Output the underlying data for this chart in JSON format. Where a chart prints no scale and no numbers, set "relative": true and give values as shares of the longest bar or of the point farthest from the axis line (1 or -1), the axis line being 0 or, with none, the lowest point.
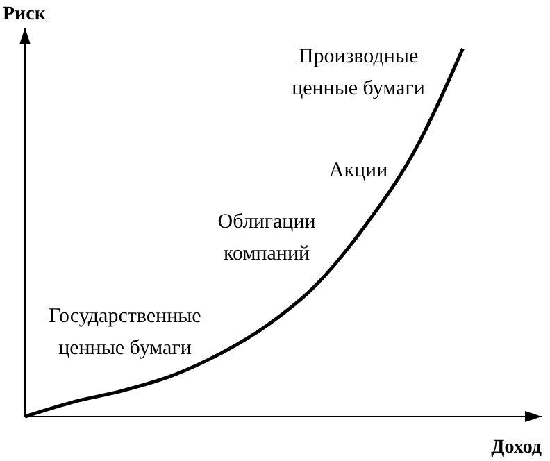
{
  "chart_data": {
    "type": "line",
    "relative": true,
    "xlabel": "Доход",
    "ylabel": "Риск",
    "categories": [
      null,
      null,
      null,
      null,
      null,
      null,
      null,
      null,
      null,
      null
    ],
    "values": [
      0,
      0.04,
      0.07,
      0.11,
      0.17,
      0.25,
      0.36,
      0.52,
      0.72,
      1
    ],
    "color": "#000000",
    "annotations": [
      "Производные\nценные бумаги",
      "Акции",
      "Облигации\nкомпаний",
      "Государственные\nценные бумаги"
    ]
  }
}
